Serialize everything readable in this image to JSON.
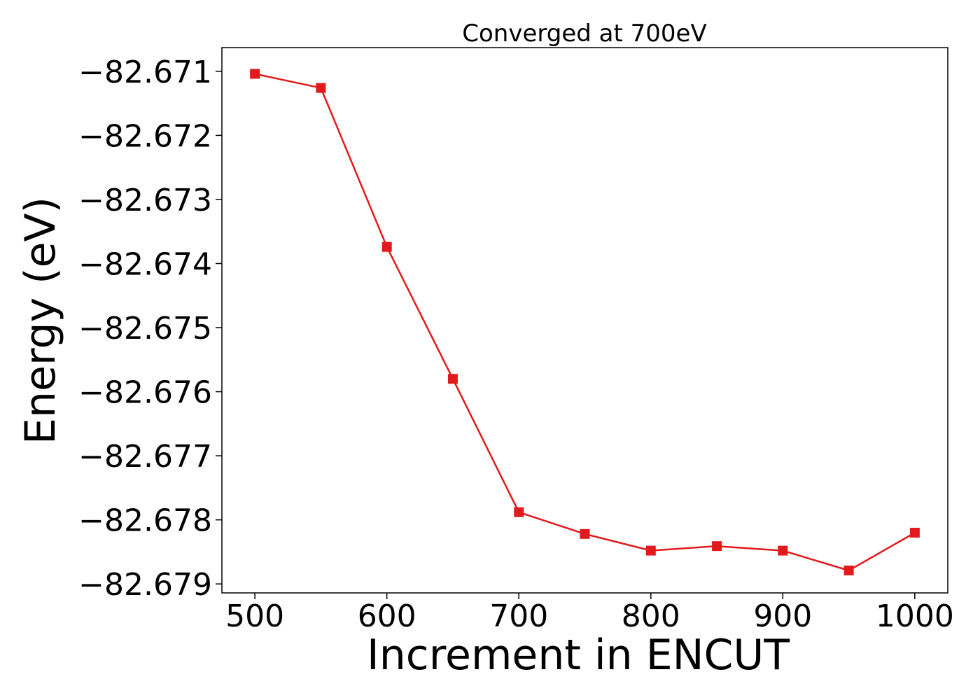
{
  "chart_data": {
    "type": "line",
    "title": "Converged at 700eV",
    "xlabel": "Increment in ENCUT",
    "ylabel": "Energy (eV)",
    "xlim": [
      475,
      1025
    ],
    "ylim": [
      -82.67914,
      -82.67063
    ],
    "x_ticks": [
      500,
      600,
      700,
      800,
      900,
      1000
    ],
    "y_ticks": [
      -82.671,
      -82.672,
      -82.673,
      -82.674,
      -82.675,
      -82.676,
      -82.677,
      -82.678,
      -82.679
    ],
    "y_tick_labels": [
      "−82.671",
      "−82.672",
      "−82.673",
      "−82.674",
      "−82.675",
      "−82.676",
      "−82.677",
      "−82.678",
      "−82.679"
    ],
    "grid": false,
    "series": [
      {
        "color": "#e31a1c",
        "marker": "square",
        "x": [
          500,
          550,
          600,
          650,
          700,
          750,
          800,
          850,
          900,
          950,
          1000
        ],
        "y": [
          -82.67104,
          -82.67126,
          -82.67374,
          -82.6758,
          -82.67788,
          -82.67822,
          -82.67848,
          -82.67841,
          -82.67848,
          -82.67879,
          -82.6782
        ]
      }
    ]
  }
}
